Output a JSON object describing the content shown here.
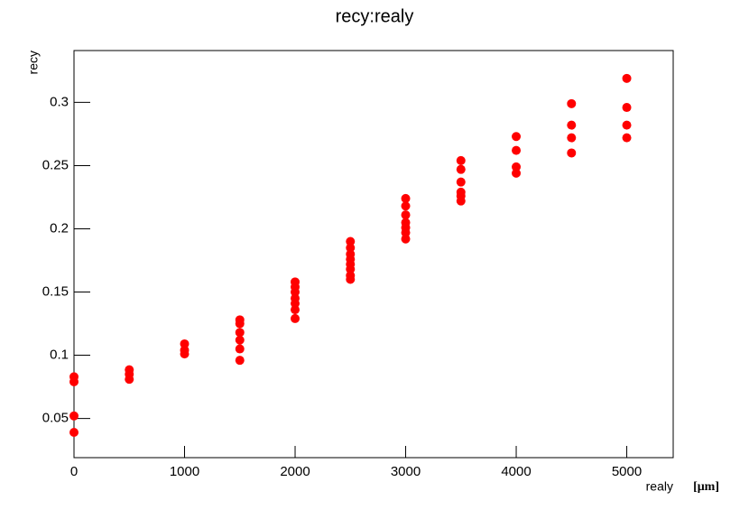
{
  "chart_data": {
    "type": "scatter",
    "title": "recy:realy",
    "x_label": "realy",
    "x_unit": "[μm]",
    "y_label": "recy",
    "color": "#ff0000",
    "xlim": [
      0,
      5420
    ],
    "xticks": [
      0,
      1000,
      2000,
      3000,
      4000,
      5000
    ],
    "ylim": [
      0.019,
      0.341
    ],
    "yticks": [
      0.05,
      0.1,
      0.15,
      0.2,
      0.25,
      0.3
    ],
    "x": [
      0,
      0,
      0,
      0,
      500,
      500,
      500,
      1000,
      1000,
      1000,
      1500,
      1500,
      1500,
      1500,
      1500,
      1500,
      2000,
      2000,
      2000,
      2000,
      2000,
      2000,
      2000,
      2500,
      2500,
      2500,
      2500,
      2500,
      2500,
      2500,
      2500,
      3000,
      3000,
      3000,
      3000,
      3000,
      3000,
      3000,
      3500,
      3500,
      3500,
      3500,
      3500,
      3500,
      4000,
      4000,
      4000,
      4000,
      4500,
      4500,
      4500,
      4500,
      5000,
      5000,
      5000,
      5000
    ],
    "y": [
      0.083,
      0.079,
      0.052,
      0.039,
      0.0885,
      0.085,
      0.081,
      0.109,
      0.104,
      0.101,
      0.128,
      0.125,
      0.118,
      0.112,
      0.105,
      0.096,
      0.158,
      0.154,
      0.15,
      0.145,
      0.141,
      0.136,
      0.129,
      0.19,
      0.185,
      0.18,
      0.176,
      0.172,
      0.168,
      0.163,
      0.16,
      0.224,
      0.218,
      0.211,
      0.205,
      0.201,
      0.197,
      0.192,
      0.254,
      0.247,
      0.237,
      0.229,
      0.226,
      0.222,
      0.273,
      0.262,
      0.249,
      0.244,
      0.299,
      0.282,
      0.272,
      0.26,
      0.319,
      0.296,
      0.282,
      0.272
    ]
  }
}
